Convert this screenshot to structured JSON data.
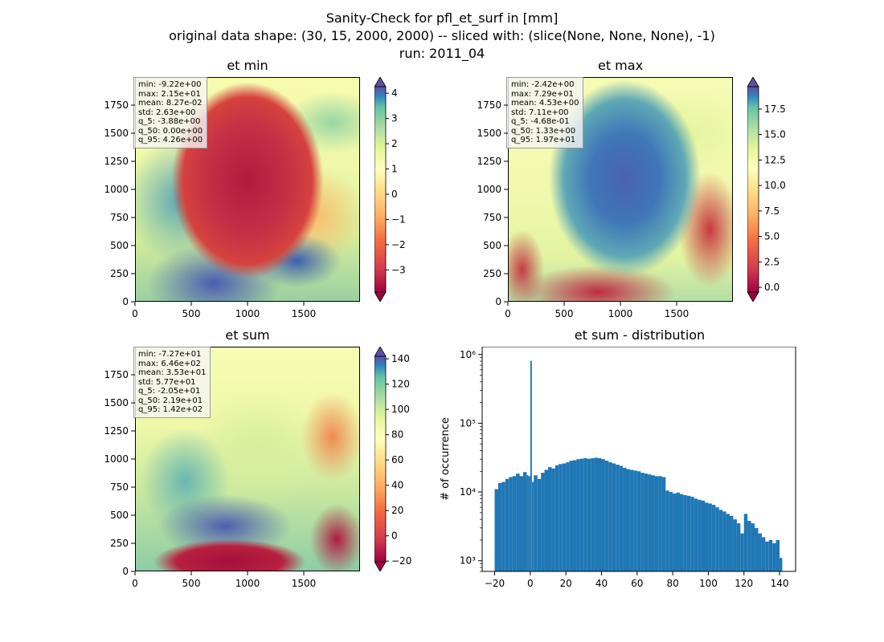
{
  "figure": {
    "title_line1": "Sanity-Check for pfl_et_surf in [mm]",
    "title_line2": "original data shape: (30, 15, 2000, 2000) -- sliced with: (slice(None, None, None), -1)",
    "title_line3": "run: 2011_04"
  },
  "panels": [
    {
      "title": "et min",
      "stats": [
        "min: -9.22e+00",
        "max: 2.15e+01",
        "mean: 8.27e-02",
        "std: 2.63e+00",
        "q_5: -3.88e+00",
        "q_50: 0.00e+00",
        "q_95: 4.26e+00"
      ],
      "colorbar_ticks": [
        "4",
        "3",
        "2",
        "1",
        "0",
        "−1",
        "−2",
        "−3"
      ],
      "colorbar_range": [
        -3.88,
        4.26
      ]
    },
    {
      "title": "et max",
      "stats": [
        "min: -2.42e+00",
        "max: 7.29e+01",
        "mean: 4.53e+00",
        "std: 7.11e+00",
        "q_5: -4.68e-01",
        "q_50: 1.33e+00",
        "q_95: 1.97e+01"
      ],
      "colorbar_ticks": [
        "17.5",
        "15.0",
        "12.5",
        "10.0",
        "7.5",
        "5.0",
        "2.5",
        "0.0"
      ],
      "colorbar_range": [
        -0.468,
        19.7
      ]
    },
    {
      "title": "et sum",
      "stats": [
        "min: -7.27e+01",
        "max: 6.46e+02",
        "mean: 3.53e+01",
        "std: 5.77e+01",
        "q_5: -2.05e+01",
        "q_50: 2.19e+01",
        "q_95: 1.42e+02"
      ],
      "colorbar_ticks": [
        "140",
        "120",
        "100",
        "80",
        "60",
        "40",
        "20",
        "0",
        "−20"
      ],
      "colorbar_range": [
        -20.5,
        142
      ]
    }
  ],
  "map_axes": {
    "x_ticks": [
      "0",
      "500",
      "1000",
      "1500"
    ],
    "y_ticks": [
      "1750",
      "1500",
      "1250",
      "1000",
      "750",
      "500",
      "250",
      "0"
    ]
  },
  "chart_data": {
    "type": "bar",
    "title": "et sum - distribution",
    "xlabel": "",
    "ylabel": "# of occurrence",
    "yscale": "log",
    "xlim": [
      -27,
      149
    ],
    "ylim": [
      700,
      1300000
    ],
    "x_ticks": [
      "−20",
      "0",
      "20",
      "40",
      "60",
      "80",
      "100",
      "120",
      "140"
    ],
    "y_ticks": [
      "10⁶",
      "10⁵",
      "10⁴",
      "10³"
    ],
    "color": "#1f77b4",
    "bins": [
      [
        -20,
        11000
      ],
      [
        -18,
        13500
      ],
      [
        -16,
        14000
      ],
      [
        -14,
        15500
      ],
      [
        -12,
        16500
      ],
      [
        -10,
        17000
      ],
      [
        -8,
        18500
      ],
      [
        -6,
        17000
      ],
      [
        -4,
        19500
      ],
      [
        -2,
        17500
      ],
      [
        -1,
        17000
      ],
      [
        0,
        810000
      ],
      [
        1,
        14000
      ],
      [
        2,
        17500
      ],
      [
        4,
        15500
      ],
      [
        6,
        19000
      ],
      [
        8,
        21000
      ],
      [
        10,
        23000
      ],
      [
        12,
        22000
      ],
      [
        14,
        24500
      ],
      [
        16,
        25500
      ],
      [
        18,
        26000
      ],
      [
        20,
        27000
      ],
      [
        22,
        28500
      ],
      [
        24,
        29000
      ],
      [
        26,
        30000
      ],
      [
        28,
        30500
      ],
      [
        30,
        31000
      ],
      [
        32,
        30500
      ],
      [
        34,
        31000
      ],
      [
        36,
        31500
      ],
      [
        38,
        31000
      ],
      [
        40,
        30000
      ],
      [
        42,
        28500
      ],
      [
        44,
        27000
      ],
      [
        46,
        26000
      ],
      [
        48,
        25000
      ],
      [
        50,
        24000
      ],
      [
        52,
        22500
      ],
      [
        54,
        21500
      ],
      [
        56,
        21000
      ],
      [
        58,
        20500
      ],
      [
        60,
        20000
      ],
      [
        62,
        19000
      ],
      [
        64,
        18500
      ],
      [
        66,
        18000
      ],
      [
        68,
        17500
      ],
      [
        70,
        17000
      ],
      [
        72,
        17000
      ],
      [
        74,
        16500
      ],
      [
        76,
        10500
      ],
      [
        78,
        10000
      ],
      [
        80,
        9500
      ],
      [
        82,
        9800
      ],
      [
        84,
        9300
      ],
      [
        86,
        9000
      ],
      [
        88,
        8800
      ],
      [
        90,
        8500
      ],
      [
        92,
        8000
      ],
      [
        94,
        7700
      ],
      [
        96,
        7500
      ],
      [
        98,
        7000
      ],
      [
        100,
        6800
      ],
      [
        102,
        6500
      ],
      [
        104,
        6000
      ],
      [
        106,
        5500
      ],
      [
        108,
        5200
      ],
      [
        110,
        4800
      ],
      [
        112,
        4500
      ],
      [
        114,
        4000
      ],
      [
        116,
        3500
      ],
      [
        118,
        2500
      ],
      [
        120,
        4800
      ],
      [
        122,
        3800
      ],
      [
        124,
        3500
      ],
      [
        126,
        3000
      ],
      [
        128,
        2500
      ],
      [
        130,
        2200
      ],
      [
        132,
        1900
      ],
      [
        134,
        2000
      ],
      [
        136,
        1800
      ],
      [
        138,
        2000
      ],
      [
        140,
        1100
      ]
    ]
  }
}
